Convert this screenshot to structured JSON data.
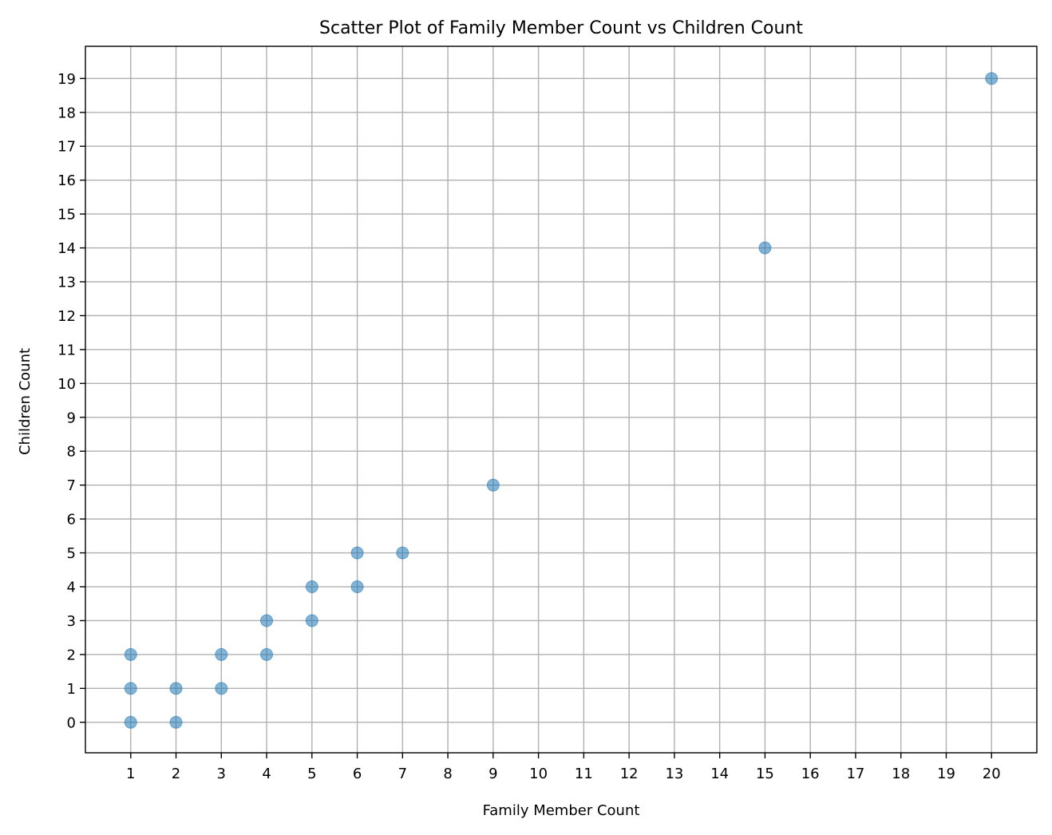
{
  "chart_data": {
    "type": "scatter",
    "title": "Scatter Plot of Family Member Count vs Children Count",
    "xlabel": "Family Member Count",
    "ylabel": "Children Count",
    "xlim": [
      0,
      21
    ],
    "ylim": [
      -0.9,
      19.95
    ],
    "xticks": [
      1,
      2,
      3,
      4,
      5,
      6,
      7,
      8,
      9,
      10,
      11,
      12,
      13,
      14,
      15,
      16,
      17,
      18,
      19,
      20
    ],
    "yticks": [
      0,
      1,
      2,
      3,
      4,
      5,
      6,
      7,
      8,
      9,
      10,
      11,
      12,
      13,
      14,
      15,
      16,
      17,
      18,
      19
    ],
    "grid": true,
    "legend": false,
    "marker_color": "#1f77b4",
    "series": [
      {
        "points": [
          {
            "x": 1,
            "y": 0
          },
          {
            "x": 1,
            "y": 1
          },
          {
            "x": 1,
            "y": 2
          },
          {
            "x": 2,
            "y": 0
          },
          {
            "x": 2,
            "y": 1
          },
          {
            "x": 3,
            "y": 1
          },
          {
            "x": 3,
            "y": 2
          },
          {
            "x": 4,
            "y": 2
          },
          {
            "x": 4,
            "y": 3
          },
          {
            "x": 5,
            "y": 3
          },
          {
            "x": 5,
            "y": 4
          },
          {
            "x": 6,
            "y": 4
          },
          {
            "x": 6,
            "y": 5
          },
          {
            "x": 7,
            "y": 5
          },
          {
            "x": 9,
            "y": 7
          },
          {
            "x": 15,
            "y": 14
          },
          {
            "x": 20,
            "y": 19
          }
        ]
      }
    ]
  }
}
